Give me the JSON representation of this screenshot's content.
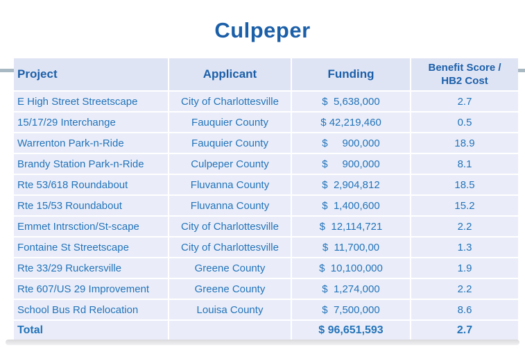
{
  "title": "Culpeper",
  "colors": {
    "title_text": "#1b5fa8",
    "data_text": "#2273b9",
    "header_bg": "#dfe4f5",
    "row_bg": "#eaedf9",
    "accent_line": "#a9b9c4"
  },
  "table": {
    "columns": [
      {
        "label": "Project",
        "align": "left"
      },
      {
        "label": "Applicant",
        "align": "center"
      },
      {
        "label": "Funding",
        "align": "center"
      },
      {
        "label": "Benefit Score /\nHB2 Cost",
        "align": "center"
      }
    ],
    "rows": [
      {
        "project": "E High Street Streetscape",
        "applicant": "City of Charlottesville",
        "funding": "$  5,638,000",
        "score": "2.7"
      },
      {
        "project": "15/17/29 Interchange",
        "applicant": "Fauquier County",
        "funding": "$ 42,219,460",
        "score": "0.5"
      },
      {
        "project": "Warrenton Park-n-Ride",
        "applicant": "Fauquier County",
        "funding": "$     900,000",
        "score": "18.9"
      },
      {
        "project": "Brandy Station Park-n-Ride",
        "applicant": "Culpeper County",
        "funding": "$     900,000",
        "score": "8.1"
      },
      {
        "project": "Rte 53/618 Roundabout",
        "applicant": "Fluvanna County",
        "funding": "$  2,904,812",
        "score": "18.5"
      },
      {
        "project": "Rte 15/53 Roundabout",
        "applicant": "Fluvanna County",
        "funding": "$  1,400,600",
        "score": "15.2"
      },
      {
        "project": "Emmet Intrsction/St-scape",
        "applicant": "City of Charlottesville",
        "funding": "$  12,114,721",
        "score": "2.2"
      },
      {
        "project": "Fontaine St Streetscape",
        "applicant": "City of Charlottesville",
        "funding": "$  11,700,00",
        "score": "1.3"
      },
      {
        "project": "Rte 33/29 Ruckersville",
        "applicant": "Greene County",
        "funding": "$  10,100,000",
        "score": "1.9"
      },
      {
        "project": "Rte 607/US 29 Improvement",
        "applicant": "Greene County",
        "funding": "$  1,274,000",
        "score": "2.2"
      },
      {
        "project": "School Bus Rd Relocation",
        "applicant": "Louisa County",
        "funding": "$  7,500,000",
        "score": "8.6"
      },
      {
        "project": "Total",
        "applicant": "",
        "funding": "$ 96,651,593",
        "score": "2.7",
        "bold": true
      }
    ]
  }
}
